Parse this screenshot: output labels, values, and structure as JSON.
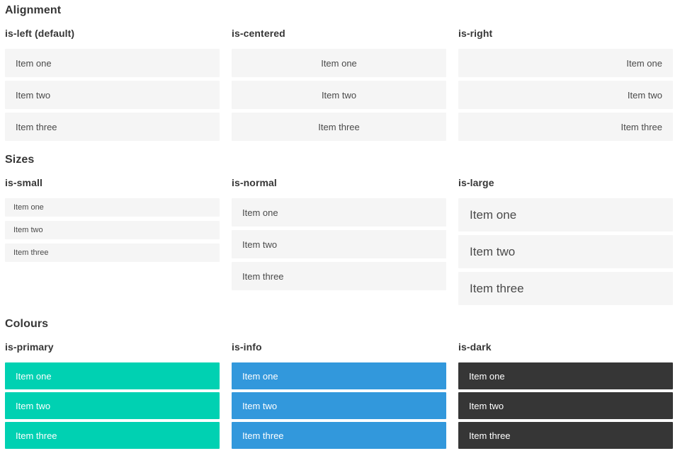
{
  "sections": [
    {
      "title": "Alignment",
      "columns": [
        {
          "label": "is-left (default)",
          "variant": "left",
          "items": [
            "Item one",
            "Item two",
            "Item three"
          ]
        },
        {
          "label": "is-centered",
          "variant": "centered",
          "items": [
            "Item one",
            "Item two",
            "Item three"
          ]
        },
        {
          "label": "is-right",
          "variant": "right",
          "items": [
            "Item one",
            "Item two",
            "Item three"
          ]
        }
      ]
    },
    {
      "title": "Sizes",
      "columns": [
        {
          "label": "is-small",
          "variant": "small",
          "items": [
            "Item one",
            "Item two",
            "Item three"
          ]
        },
        {
          "label": "is-normal",
          "variant": "normal",
          "items": [
            "Item one",
            "Item two",
            "Item three"
          ]
        },
        {
          "label": "is-large",
          "variant": "large",
          "items": [
            "Item one",
            "Item two",
            "Item three"
          ]
        }
      ]
    },
    {
      "title": "Colours",
      "columns": [
        {
          "label": "is-primary",
          "variant": "primary",
          "items": [
            "Item one",
            "Item two",
            "Item three"
          ]
        },
        {
          "label": "is-info",
          "variant": "info",
          "items": [
            "Item one",
            "Item two",
            "Item three"
          ]
        },
        {
          "label": "is-dark",
          "variant": "dark",
          "items": [
            "Item one",
            "Item two",
            "Item three"
          ]
        }
      ]
    }
  ],
  "colors": {
    "primary": "#00d1b2",
    "info": "#3298dc",
    "dark": "#363636",
    "item_bg": "#f5f5f5",
    "item_text": "#4a4a4a",
    "heading_text": "#363636"
  }
}
